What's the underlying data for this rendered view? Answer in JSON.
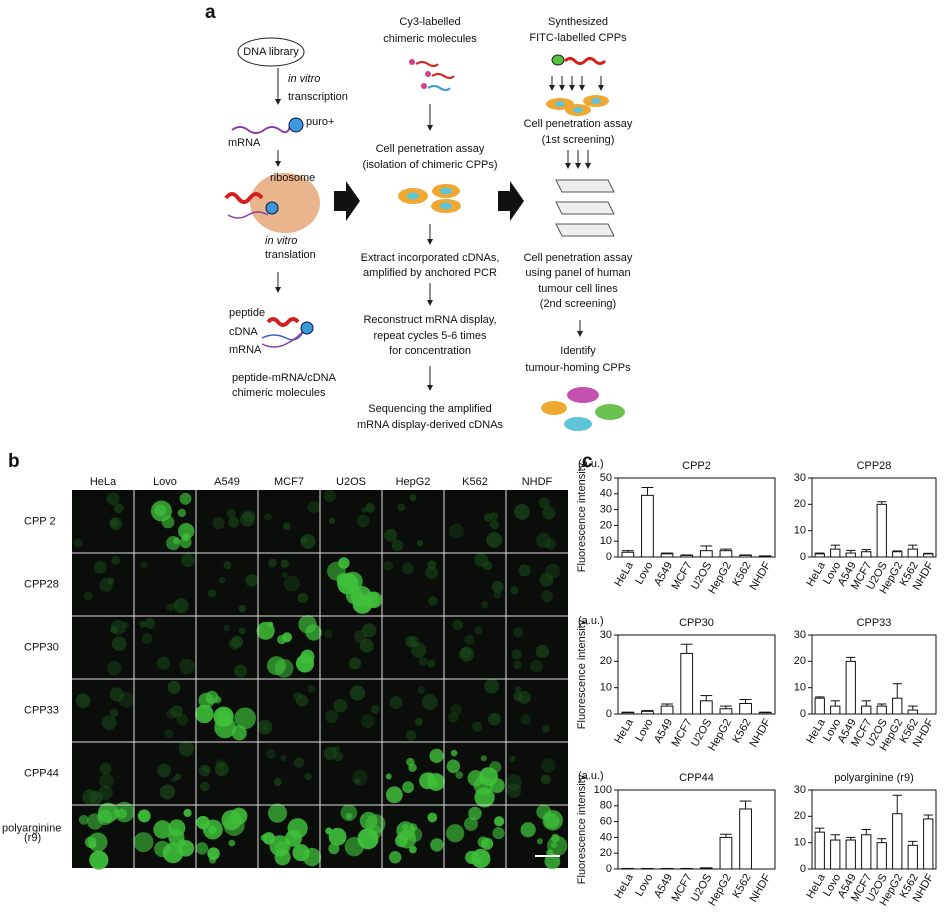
{
  "panel_a": {
    "label": "a",
    "dna_library": "DNA library",
    "in_vitro_1": "in vitro",
    "transcription": "transcription",
    "puro": "puro+",
    "mrna_1": "mRNA",
    "ribosome": "ribosome",
    "in_vitro_2": "in vitro",
    "translation": "translation",
    "peptide": "peptide",
    "cdna": "cDNA",
    "mrna_2": "mRNA",
    "chimeric_1": "peptide-mRNA/cDNA",
    "chimeric_2": "chimeric molecules",
    "cy3_1": "Cy3-labelled",
    "cy3_2": "chimeric molecules",
    "assay_1": "Cell penetration assay",
    "assay_2": "(isolation of chimeric CPPs)",
    "extract_1": "Extract incorporated cDNAs,",
    "extract_2": "amplified by anchored PCR",
    "reconstruct_1": "Reconstruct mRNA display,",
    "reconstruct_2": "repeat cycles 5-6 times",
    "reconstruct_3": "for concentration",
    "seq_1": "Sequencing the amplified",
    "seq_2": "mRNA display-derived cDNAs",
    "synth_1": "Synthesized",
    "synth_2": "FITC-labelled CPPs",
    "first_1": "Cell penetration assay",
    "first_2": "(1st screening)",
    "second_1": "Cell penetration assay",
    "second_2": "using panel of human",
    "second_3": "tumour cell lines",
    "second_4": "(2nd screening)",
    "identify_1": "Identify",
    "identify_2": "tumour-homing CPPs"
  },
  "panel_b": {
    "label": "b",
    "columns": [
      "HeLa",
      "Lovo",
      "A549",
      "MCF7",
      "U2OS",
      "HepG2",
      "K562",
      "NHDF"
    ],
    "rows": [
      "CPP  2",
      "CPP28",
      "CPP30",
      "CPP33",
      "CPP44",
      "polyarginine"
    ],
    "row_5_line_2": "(r9)"
  },
  "panel_c": {
    "label": "c"
  },
  "chart_data": [
    {
      "type": "bar",
      "title": "CPP2",
      "unit": "(a.u.)",
      "ylabel": "Fluorescence intensity",
      "categories": [
        "HeLa",
        "Lovo",
        "A549",
        "MCF7",
        "U2OS",
        "HepG2",
        "K562",
        "NHDF"
      ],
      "values": [
        3,
        39,
        2,
        1,
        4,
        4,
        1,
        0.5
      ],
      "errors": [
        1,
        5,
        0.5,
        0.3,
        3,
        1,
        0.3,
        0.2
      ],
      "ylim": [
        0,
        50
      ],
      "yticks": [
        0,
        10,
        20,
        30,
        40,
        50
      ],
      "color": "#ffffff"
    },
    {
      "type": "bar",
      "title": "CPP28",
      "categories": [
        "HeLa",
        "Lovo",
        "A549",
        "MCF7",
        "U2OS",
        "HepG2",
        "K562",
        "NHDF"
      ],
      "values": [
        1.2,
        3,
        1.5,
        2,
        20,
        2,
        3,
        1.2
      ],
      "errors": [
        0.3,
        1.5,
        1,
        0.8,
        1,
        0.3,
        1.5,
        0.2
      ],
      "ylim": [
        0,
        30
      ],
      "yticks": [
        0,
        10,
        20,
        30
      ],
      "color": "#ffffff"
    },
    {
      "type": "bar",
      "title": "CPP30",
      "unit": "(a.u.)",
      "ylabel": "Fluorescence intensity",
      "categories": [
        "HeLa",
        "Lovo",
        "A549",
        "MCF7",
        "U2OS",
        "HepG2",
        "K562",
        "NHDF"
      ],
      "values": [
        0.5,
        1,
        3,
        23,
        5,
        2,
        4,
        0.5
      ],
      "errors": [
        0.2,
        0.3,
        0.8,
        3.5,
        2,
        1,
        1.5,
        0.2
      ],
      "ylim": [
        0,
        30
      ],
      "yticks": [
        0,
        10,
        20,
        30
      ],
      "color": "#ffffff"
    },
    {
      "type": "bar",
      "title": "CPP33",
      "categories": [
        "HeLa",
        "Lovo",
        "A549",
        "MCF7",
        "U2OS",
        "HepG2",
        "K562",
        "NHDF"
      ],
      "values": [
        6,
        3,
        20,
        3,
        3,
        6,
        1.5,
        0
      ],
      "errors": [
        0.5,
        2,
        1.5,
        2,
        0.8,
        5.5,
        1.5,
        0
      ],
      "ylim": [
        0,
        30
      ],
      "yticks": [
        0,
        10,
        20,
        30
      ],
      "color": "#ffffff"
    },
    {
      "type": "bar",
      "title": "CPP44",
      "unit": "(a.u.)",
      "ylabel": "Fluorescence intensity",
      "categories": [
        "HeLa",
        "Lovo",
        "A549",
        "MCF7",
        "U2OS",
        "HepG2",
        "K562",
        "NHDF"
      ],
      "values": [
        0.5,
        0.5,
        0.5,
        0.5,
        1,
        40,
        76,
        0
      ],
      "errors": [
        0.2,
        0.2,
        0.2,
        0.2,
        0.5,
        4,
        10,
        0
      ],
      "ylim": [
        0,
        100
      ],
      "yticks": [
        0,
        20,
        40,
        60,
        80,
        100
      ],
      "color": "#ffffff"
    },
    {
      "type": "bar",
      "title": "polyarginine (r9)",
      "categories": [
        "HeLa",
        "Lovo",
        "A549",
        "MCF7",
        "U2OS",
        "HepG2",
        "K562",
        "NHDF"
      ],
      "values": [
        14,
        11,
        11,
        13,
        10,
        21,
        9,
        19
      ],
      "errors": [
        1.5,
        2,
        1,
        2,
        1.5,
        7,
        1.5,
        1.5
      ],
      "ylim": [
        0,
        30
      ],
      "yticks": [
        0,
        10,
        20,
        30
      ],
      "color": "#ffffff"
    }
  ]
}
